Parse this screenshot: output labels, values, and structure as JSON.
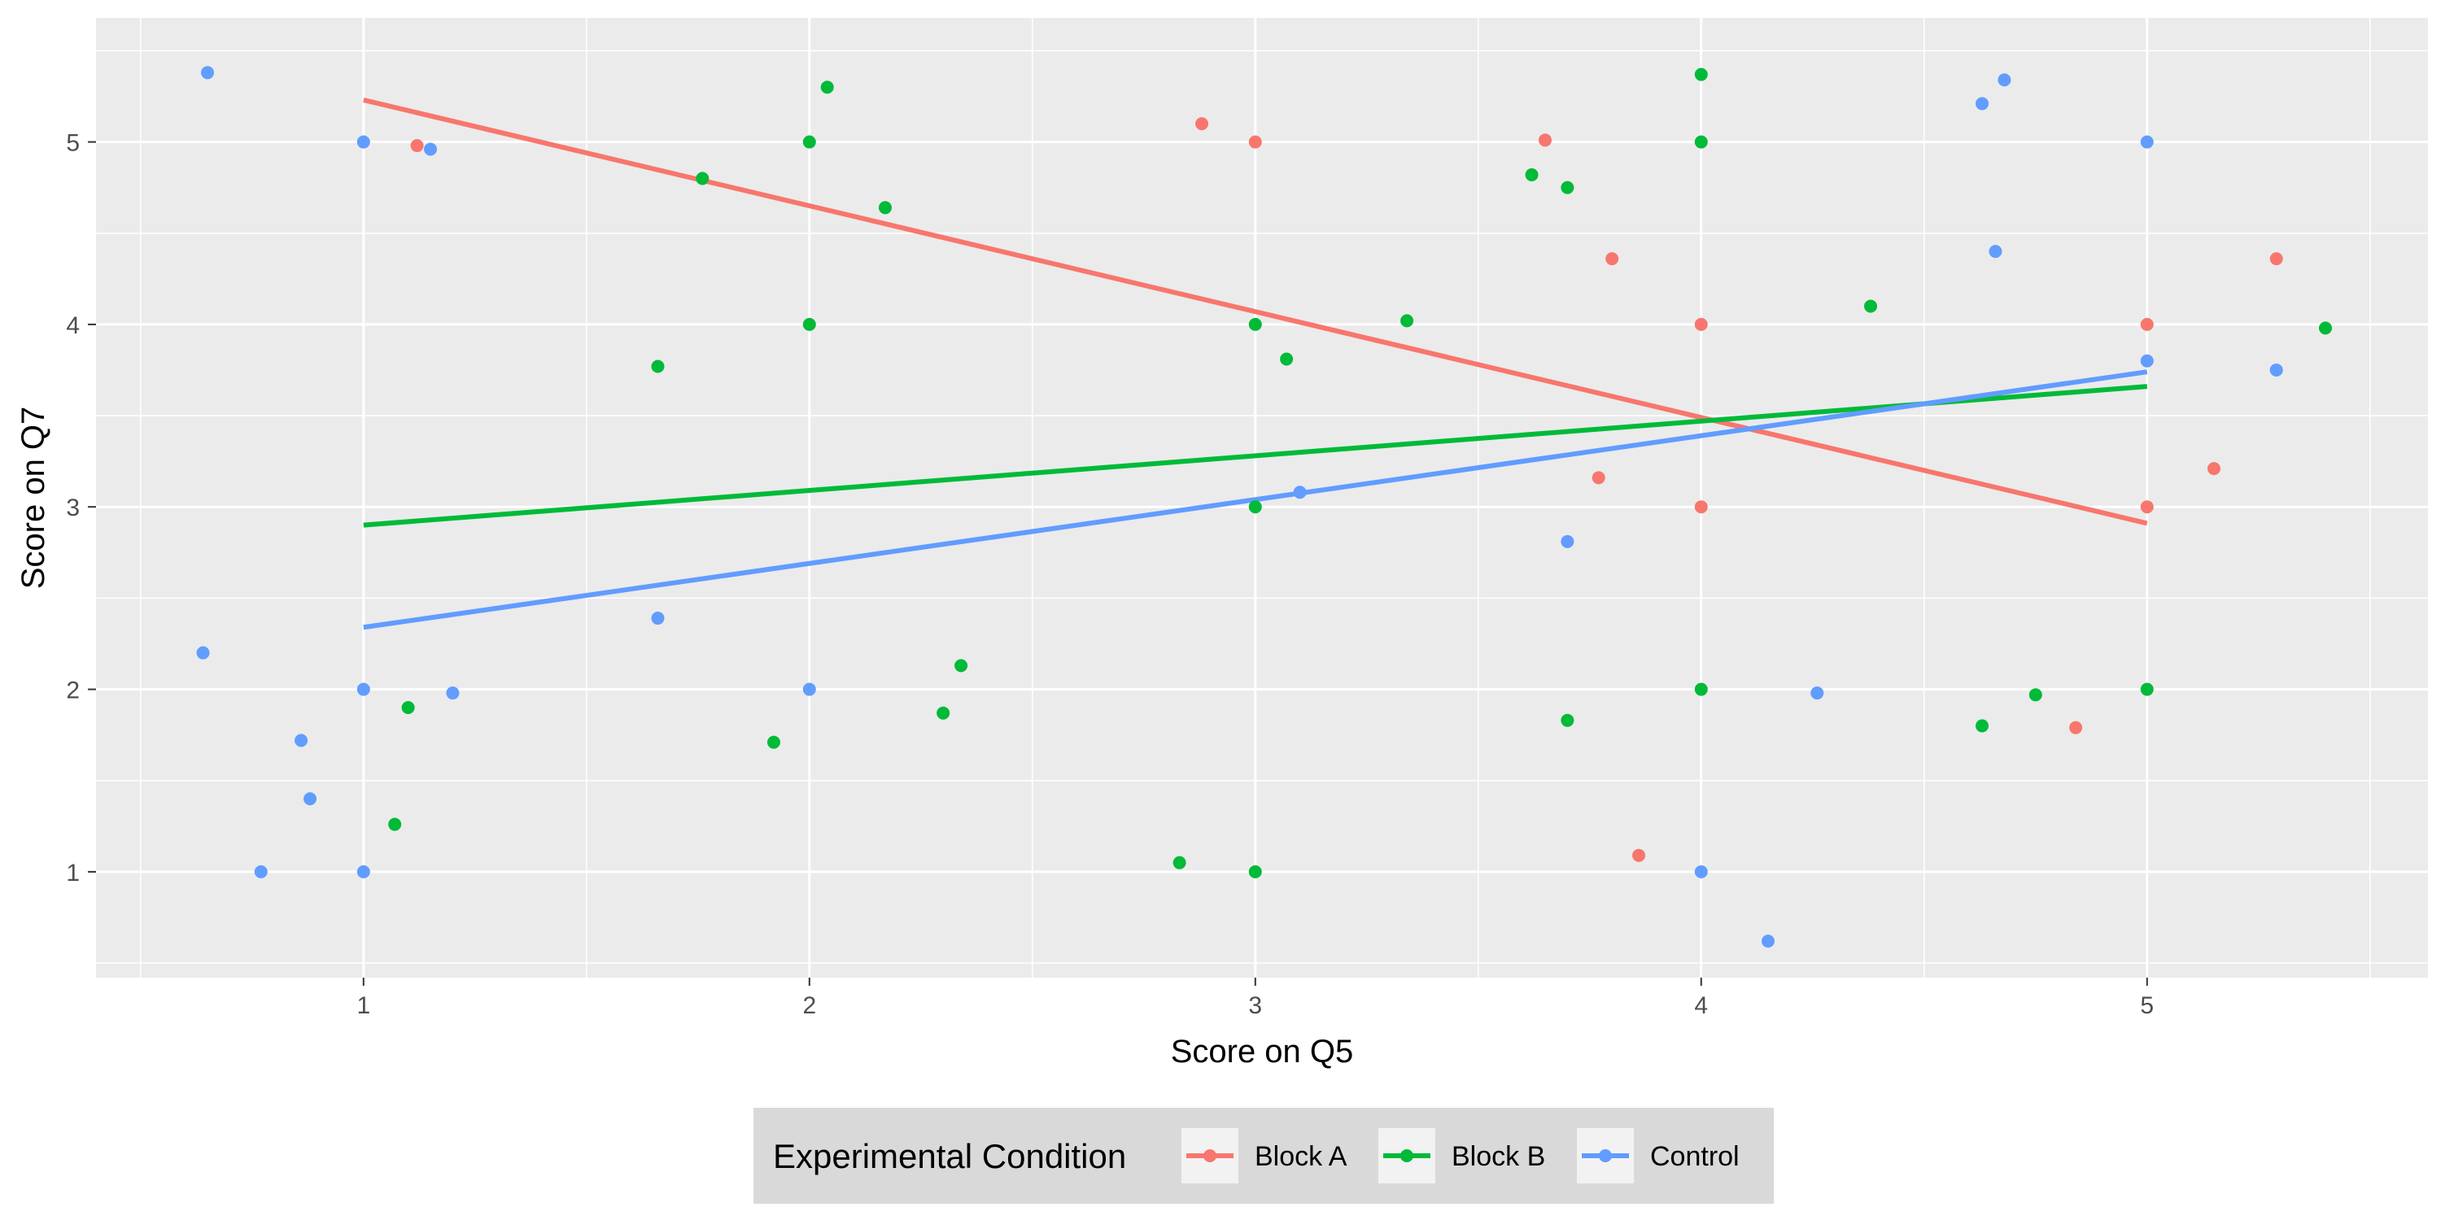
{
  "chart_data": {
    "type": "scatter",
    "title": "",
    "xlabel": "Score on Q5",
    "ylabel": "Score on Q7",
    "xlim": [
      0.4,
      5.63
    ],
    "ylim": [
      0.42,
      5.68
    ],
    "x_ticks": [
      1,
      2,
      3,
      4,
      5
    ],
    "y_ticks": [
      1,
      2,
      3,
      4,
      5
    ],
    "grid": true,
    "legend": {
      "title": "Experimental Condition",
      "position": "bottom"
    },
    "series": [
      {
        "name": "Block A",
        "color": "#F8766D",
        "points": [
          [
            1.12,
            4.98
          ],
          [
            2.88,
            5.1
          ],
          [
            3.0,
            5.0
          ],
          [
            3.65,
            5.01
          ],
          [
            3.8,
            4.36
          ],
          [
            4.0,
            4.0
          ],
          [
            3.77,
            3.16
          ],
          [
            4.0,
            3.0
          ],
          [
            3.86,
            1.09
          ],
          [
            4.84,
            1.79
          ],
          [
            5.0,
            4.0
          ],
          [
            5.0,
            3.0
          ],
          [
            5.29,
            4.36
          ],
          [
            5.15,
            3.21
          ]
        ],
        "fit": [
          [
            1.0,
            5.23
          ],
          [
            5.0,
            2.91
          ]
        ]
      },
      {
        "name": "Block B",
        "color": "#00BA38",
        "points": [
          [
            1.76,
            4.8
          ],
          [
            2.0,
            5.0
          ],
          [
            2.04,
            5.3
          ],
          [
            2.17,
            4.64
          ],
          [
            2.0,
            4.0
          ],
          [
            1.66,
            3.77
          ],
          [
            1.1,
            1.9
          ],
          [
            1.07,
            1.26
          ],
          [
            1.92,
            1.71
          ],
          [
            2.3,
            1.87
          ],
          [
            2.34,
            2.13
          ],
          [
            2.83,
            1.05
          ],
          [
            3.0,
            1.0
          ],
          [
            3.0,
            4.0
          ],
          [
            3.07,
            3.81
          ],
          [
            3.34,
            4.02
          ],
          [
            3.0,
            3.0
          ],
          [
            3.62,
            4.82
          ],
          [
            3.7,
            4.75
          ],
          [
            4.0,
            5.37
          ],
          [
            4.0,
            5.0
          ],
          [
            4.38,
            4.1
          ],
          [
            4.0,
            2.0
          ],
          [
            3.7,
            1.83
          ],
          [
            4.63,
            1.8
          ],
          [
            4.75,
            1.97
          ],
          [
            5.0,
            2.0
          ],
          [
            5.4,
            3.98
          ]
        ],
        "fit": [
          [
            1.0,
            2.9
          ],
          [
            5.0,
            3.66
          ]
        ]
      },
      {
        "name": "Control",
        "color": "#619CFF",
        "points": [
          [
            0.65,
            5.38
          ],
          [
            1.0,
            5.0
          ],
          [
            1.15,
            4.96
          ],
          [
            0.64,
            2.2
          ],
          [
            1.0,
            2.0
          ],
          [
            1.2,
            1.98
          ],
          [
            0.86,
            1.72
          ],
          [
            0.88,
            1.4
          ],
          [
            0.77,
            1.0
          ],
          [
            1.0,
            1.0
          ],
          [
            1.66,
            2.39
          ],
          [
            2.0,
            2.0
          ],
          [
            3.1,
            3.08
          ],
          [
            3.7,
            2.81
          ],
          [
            4.0,
            1.0
          ],
          [
            4.15,
            0.62
          ],
          [
            4.26,
            1.98
          ],
          [
            4.63,
            5.21
          ],
          [
            4.68,
            5.34
          ],
          [
            4.66,
            4.4
          ],
          [
            5.0,
            5.0
          ],
          [
            5.0,
            3.8
          ],
          [
            5.29,
            3.75
          ]
        ],
        "fit": [
          [
            1.0,
            2.34
          ],
          [
            5.0,
            3.74
          ]
        ]
      }
    ]
  }
}
